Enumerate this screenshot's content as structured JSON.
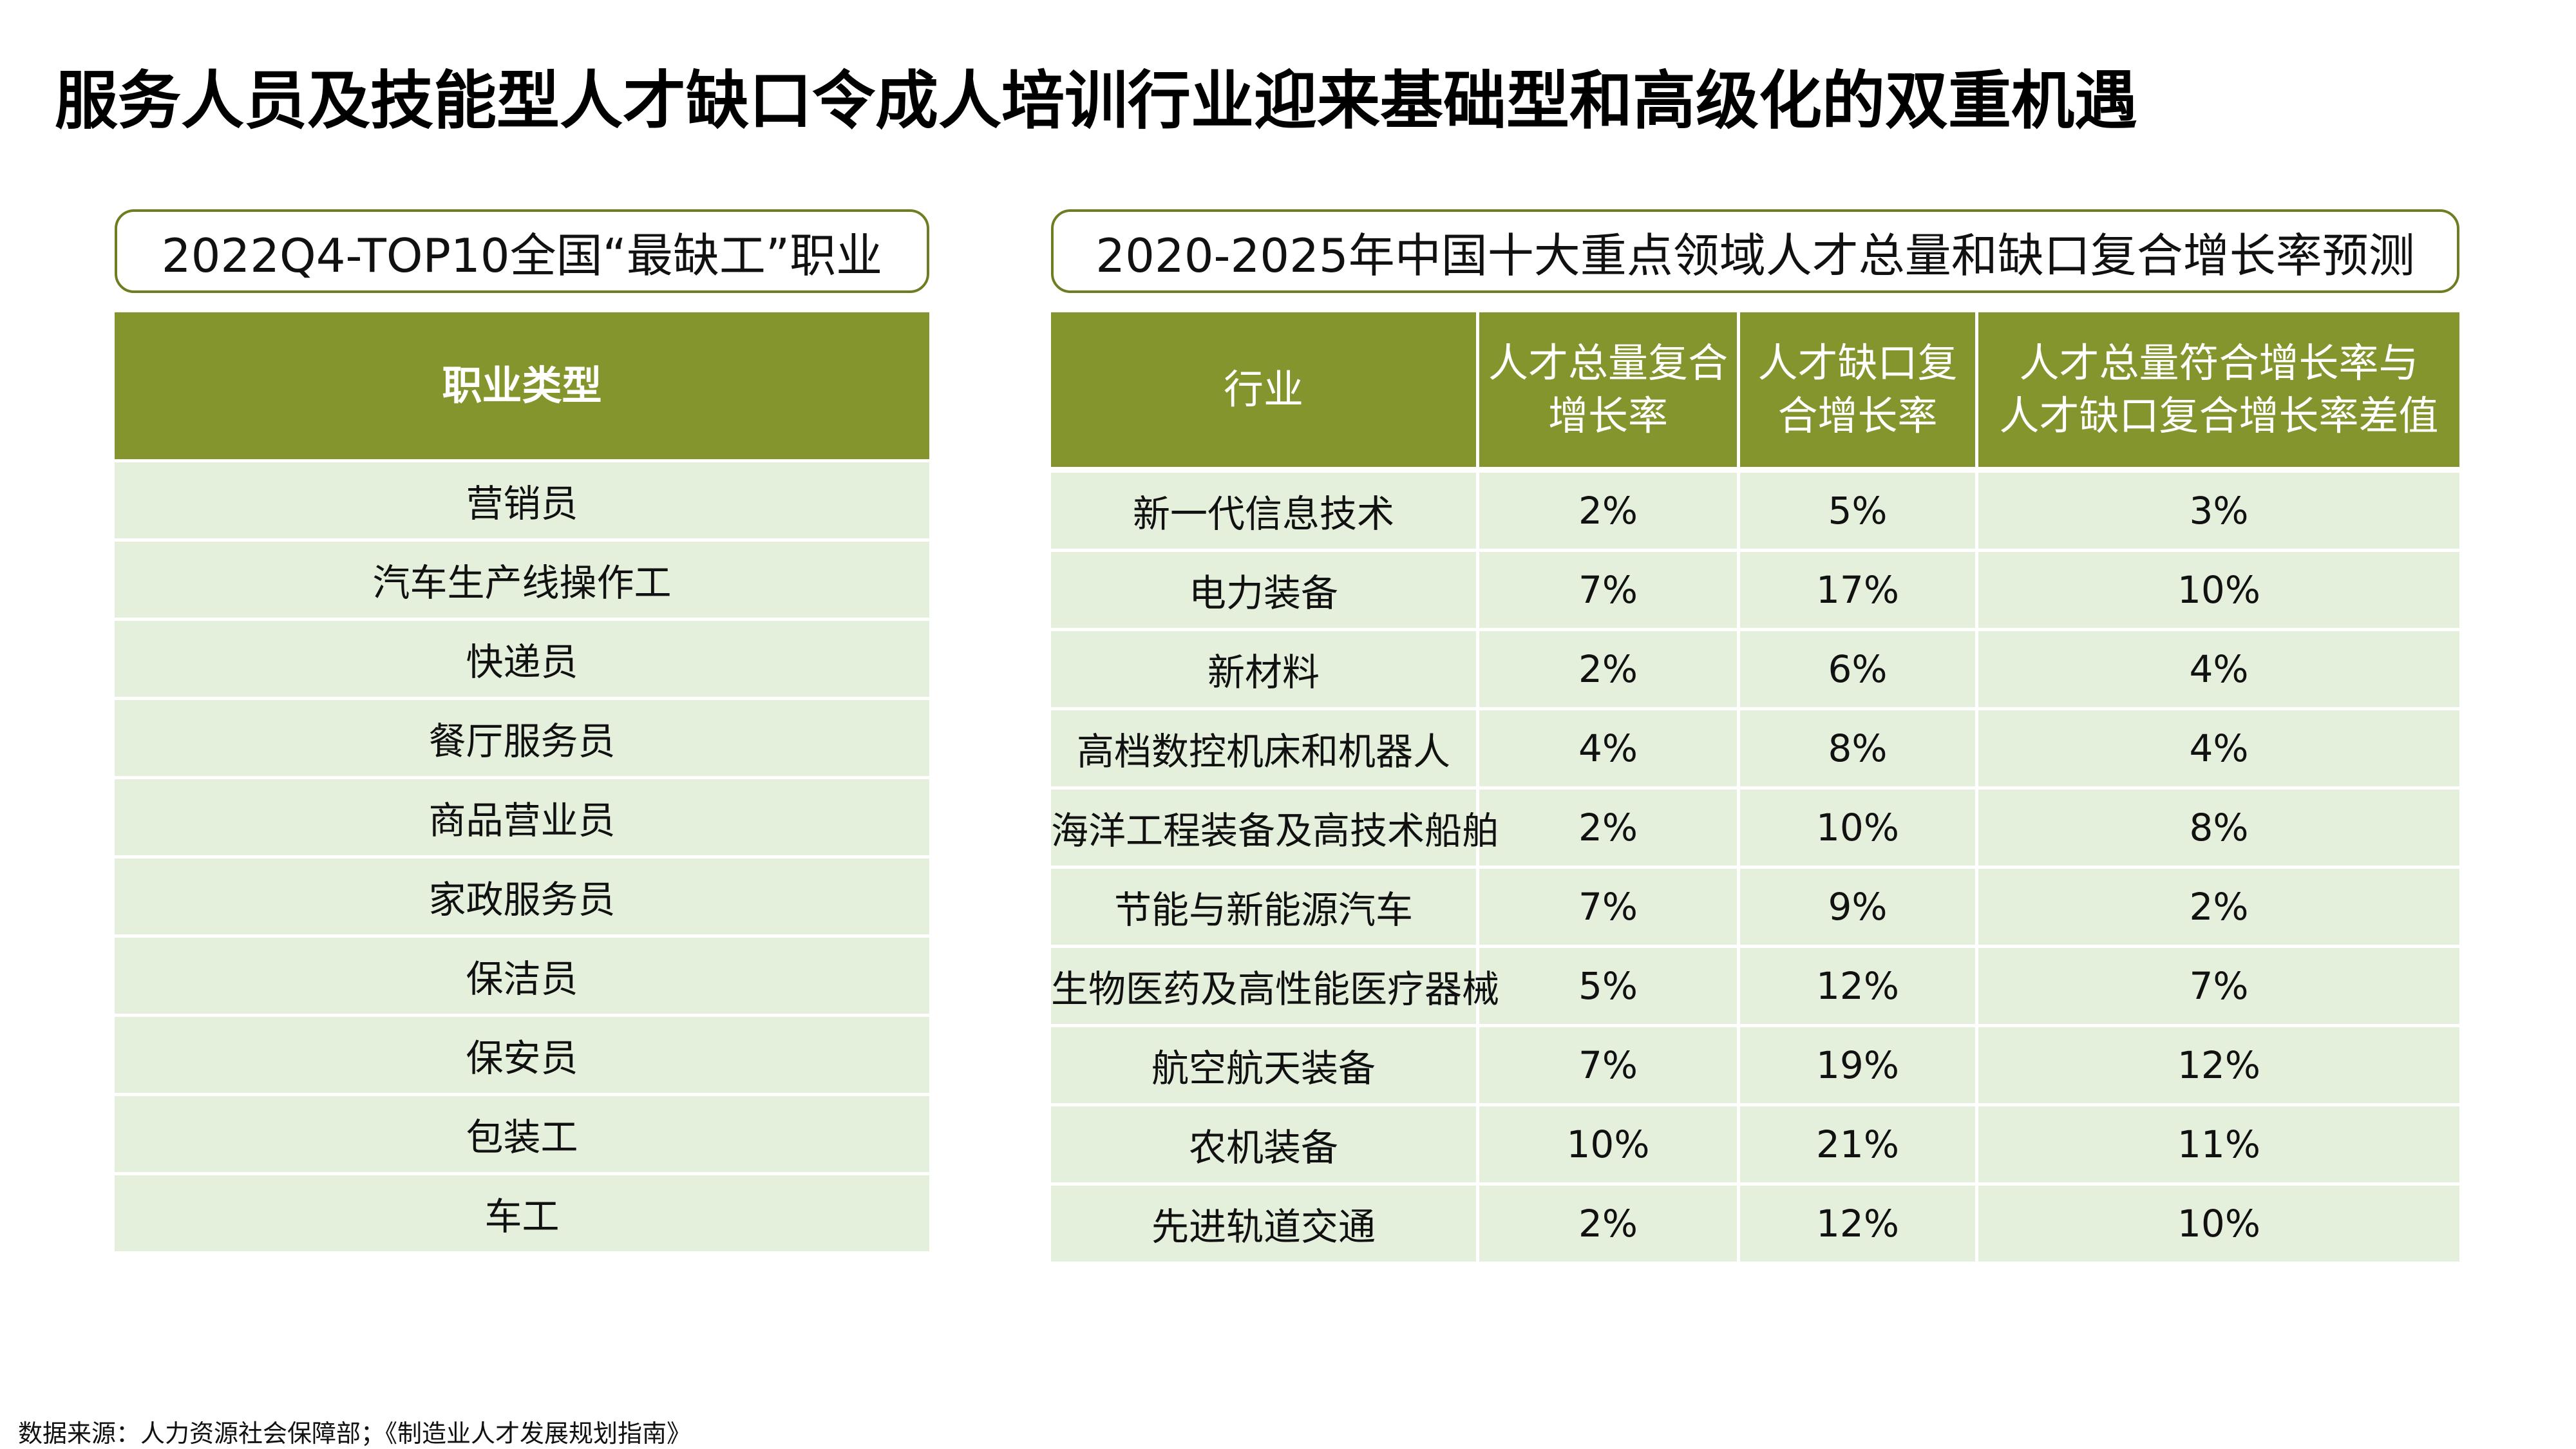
{
  "page": {
    "title": "服务人员及技能型人才缺口令成人培训行业迎来基础型和高级化的双重机遇",
    "source": "数据来源：人力资源社会保障部；《制造业人才发展规划指南》"
  },
  "left_table": {
    "title": "2022Q4-TOP10全国“最缺工”职业",
    "header": "职业类型",
    "rows": [
      "营销员",
      "汽车生产线操作工",
      "快递员",
      "餐厅服务员",
      "商品营业员",
      "家政服务员",
      "保洁员",
      "保安员",
      "包装工",
      "车工"
    ]
  },
  "right_table": {
    "title": "2020-2025年中国十大重点领域人才总量和缺口复合增长率预测",
    "headers": {
      "industry": "行业",
      "total_line1": "人才总量复合",
      "total_line2": "增长率",
      "gap_line1": "人才缺口复",
      "gap_line2": "合增长率",
      "diff_line1": "人才总量符合增长率与",
      "diff_line2": "人才缺口复合增长率差值"
    },
    "rows": [
      {
        "industry": "新一代信息技术",
        "total": "2%",
        "gap": "5%",
        "diff": "3%"
      },
      {
        "industry": "电力装备",
        "total": "7%",
        "gap": "17%",
        "diff": "10%"
      },
      {
        "industry": "新材料",
        "total": "2%",
        "gap": "6%",
        "diff": "4%"
      },
      {
        "industry": "高档数控机床和机器人",
        "total": "4%",
        "gap": "8%",
        "diff": "4%"
      },
      {
        "industry": "海洋工程装备及高技术船舶",
        "total": "2%",
        "gap": "10%",
        "diff": "8%"
      },
      {
        "industry": "节能与新能源汽车",
        "total": "7%",
        "gap": "9%",
        "diff": "2%"
      },
      {
        "industry": "生物医药及高性能医疗器械",
        "total": "5%",
        "gap": "12%",
        "diff": "7%"
      },
      {
        "industry": "航空航天装备",
        "total": "7%",
        "gap": "19%",
        "diff": "12%"
      },
      {
        "industry": "农机装备",
        "total": "10%",
        "gap": "21%",
        "diff": "11%"
      },
      {
        "industry": "先进轨道交通",
        "total": "2%",
        "gap": "12%",
        "diff": "10%"
      }
    ]
  }
}
